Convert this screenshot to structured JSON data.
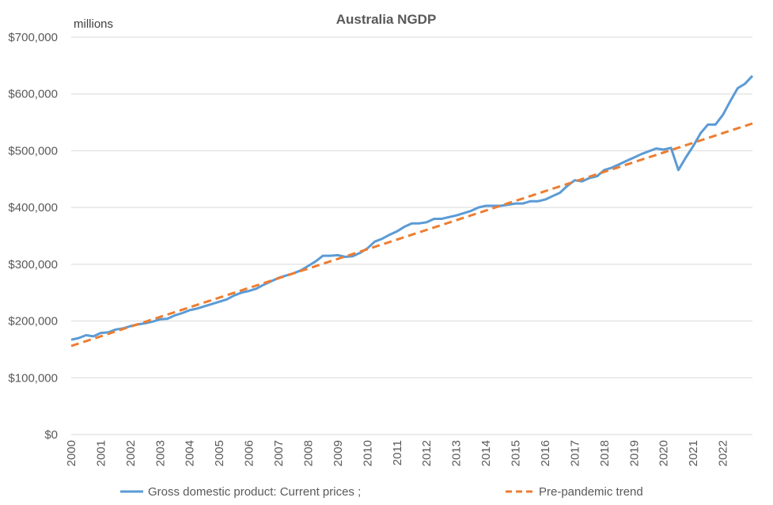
{
  "chart_data": {
    "type": "line",
    "title": "Australia NGDP",
    "unit_label": "millions",
    "xlim": [
      2000,
      2022.75
    ],
    "ylim": [
      0,
      700000
    ],
    "y_ticks": [
      0,
      100000,
      200000,
      300000,
      400000,
      500000,
      600000,
      700000
    ],
    "y_tick_labels": [
      "$0",
      "$100,000",
      "$200,000",
      "$300,000",
      "$400,000",
      "$500,000",
      "$600,000",
      "$700,000"
    ],
    "x_ticks": [
      "2000",
      "2001",
      "2002",
      "2003",
      "2004",
      "2005",
      "2006",
      "2007",
      "2008",
      "2009",
      "2010",
      "2011",
      "2012",
      "2013",
      "2014",
      "2015",
      "2016",
      "2017",
      "2018",
      "2019",
      "2020",
      "2021",
      "2022"
    ],
    "grid": true,
    "legend_position": "bottom",
    "series": [
      {
        "name": "Gross domestic product: Current prices ;",
        "color": "#5b9bd5",
        "style": "solid",
        "points": [
          [
            2000.0,
            167000
          ],
          [
            2000.25,
            170000
          ],
          [
            2000.5,
            175000
          ],
          [
            2000.75,
            173000
          ],
          [
            2001.0,
            179000
          ],
          [
            2001.25,
            180000
          ],
          [
            2001.5,
            185000
          ],
          [
            2001.75,
            187000
          ],
          [
            2002.0,
            191000
          ],
          [
            2002.25,
            194000
          ],
          [
            2002.5,
            196000
          ],
          [
            2002.75,
            199000
          ],
          [
            2003.0,
            203000
          ],
          [
            2003.25,
            204000
          ],
          [
            2003.5,
            210000
          ],
          [
            2003.75,
            214000
          ],
          [
            2004.0,
            219000
          ],
          [
            2004.25,
            222000
          ],
          [
            2004.5,
            226000
          ],
          [
            2004.75,
            230000
          ],
          [
            2005.0,
            234000
          ],
          [
            2005.25,
            238000
          ],
          [
            2005.5,
            245000
          ],
          [
            2005.75,
            250000
          ],
          [
            2006.0,
            253000
          ],
          [
            2006.25,
            257000
          ],
          [
            2006.5,
            264000
          ],
          [
            2006.75,
            270000
          ],
          [
            2007.0,
            276000
          ],
          [
            2007.25,
            280000
          ],
          [
            2007.5,
            284000
          ],
          [
            2007.75,
            289000
          ],
          [
            2008.0,
            297000
          ],
          [
            2008.25,
            305000
          ],
          [
            2008.5,
            315000
          ],
          [
            2008.75,
            315000
          ],
          [
            2009.0,
            316000
          ],
          [
            2009.25,
            313000
          ],
          [
            2009.5,
            314000
          ],
          [
            2009.75,
            320000
          ],
          [
            2010.0,
            328000
          ],
          [
            2010.25,
            340000
          ],
          [
            2010.5,
            345000
          ],
          [
            2010.75,
            352000
          ],
          [
            2011.0,
            358000
          ],
          [
            2011.25,
            366000
          ],
          [
            2011.5,
            372000
          ],
          [
            2011.75,
            372000
          ],
          [
            2012.0,
            374000
          ],
          [
            2012.25,
            380000
          ],
          [
            2012.5,
            380000
          ],
          [
            2012.75,
            383000
          ],
          [
            2013.0,
            386000
          ],
          [
            2013.25,
            390000
          ],
          [
            2013.5,
            394000
          ],
          [
            2013.75,
            400000
          ],
          [
            2014.0,
            403000
          ],
          [
            2014.25,
            403000
          ],
          [
            2014.5,
            403000
          ],
          [
            2014.75,
            405000
          ],
          [
            2015.0,
            407000
          ],
          [
            2015.25,
            407000
          ],
          [
            2015.5,
            411000
          ],
          [
            2015.75,
            411000
          ],
          [
            2016.0,
            414000
          ],
          [
            2016.25,
            420000
          ],
          [
            2016.5,
            426000
          ],
          [
            2016.75,
            438000
          ],
          [
            2017.0,
            448000
          ],
          [
            2017.25,
            446000
          ],
          [
            2017.5,
            452000
          ],
          [
            2017.75,
            455000
          ],
          [
            2018.0,
            466000
          ],
          [
            2018.25,
            470000
          ],
          [
            2018.5,
            476000
          ],
          [
            2018.75,
            482000
          ],
          [
            2019.0,
            488000
          ],
          [
            2019.25,
            494000
          ],
          [
            2019.5,
            499000
          ],
          [
            2019.75,
            504000
          ],
          [
            2020.0,
            502000
          ],
          [
            2020.25,
            505000
          ],
          [
            2020.5,
            466000
          ],
          [
            2020.75,
            488000
          ],
          [
            2021.0,
            508000
          ],
          [
            2021.25,
            531000
          ],
          [
            2021.5,
            546000
          ],
          [
            2021.75,
            546000
          ],
          [
            2022.0,
            563000
          ],
          [
            2022.25,
            587000
          ],
          [
            2022.5,
            610000
          ],
          [
            2022.75,
            618000
          ],
          [
            2023.0,
            632000
          ]
        ]
      },
      {
        "name": "Pre-pandemic trend",
        "color": "#ed7d31",
        "style": "dashed",
        "points": [
          [
            2000.0,
            156000
          ],
          [
            2023.0,
            548000
          ]
        ]
      }
    ]
  }
}
